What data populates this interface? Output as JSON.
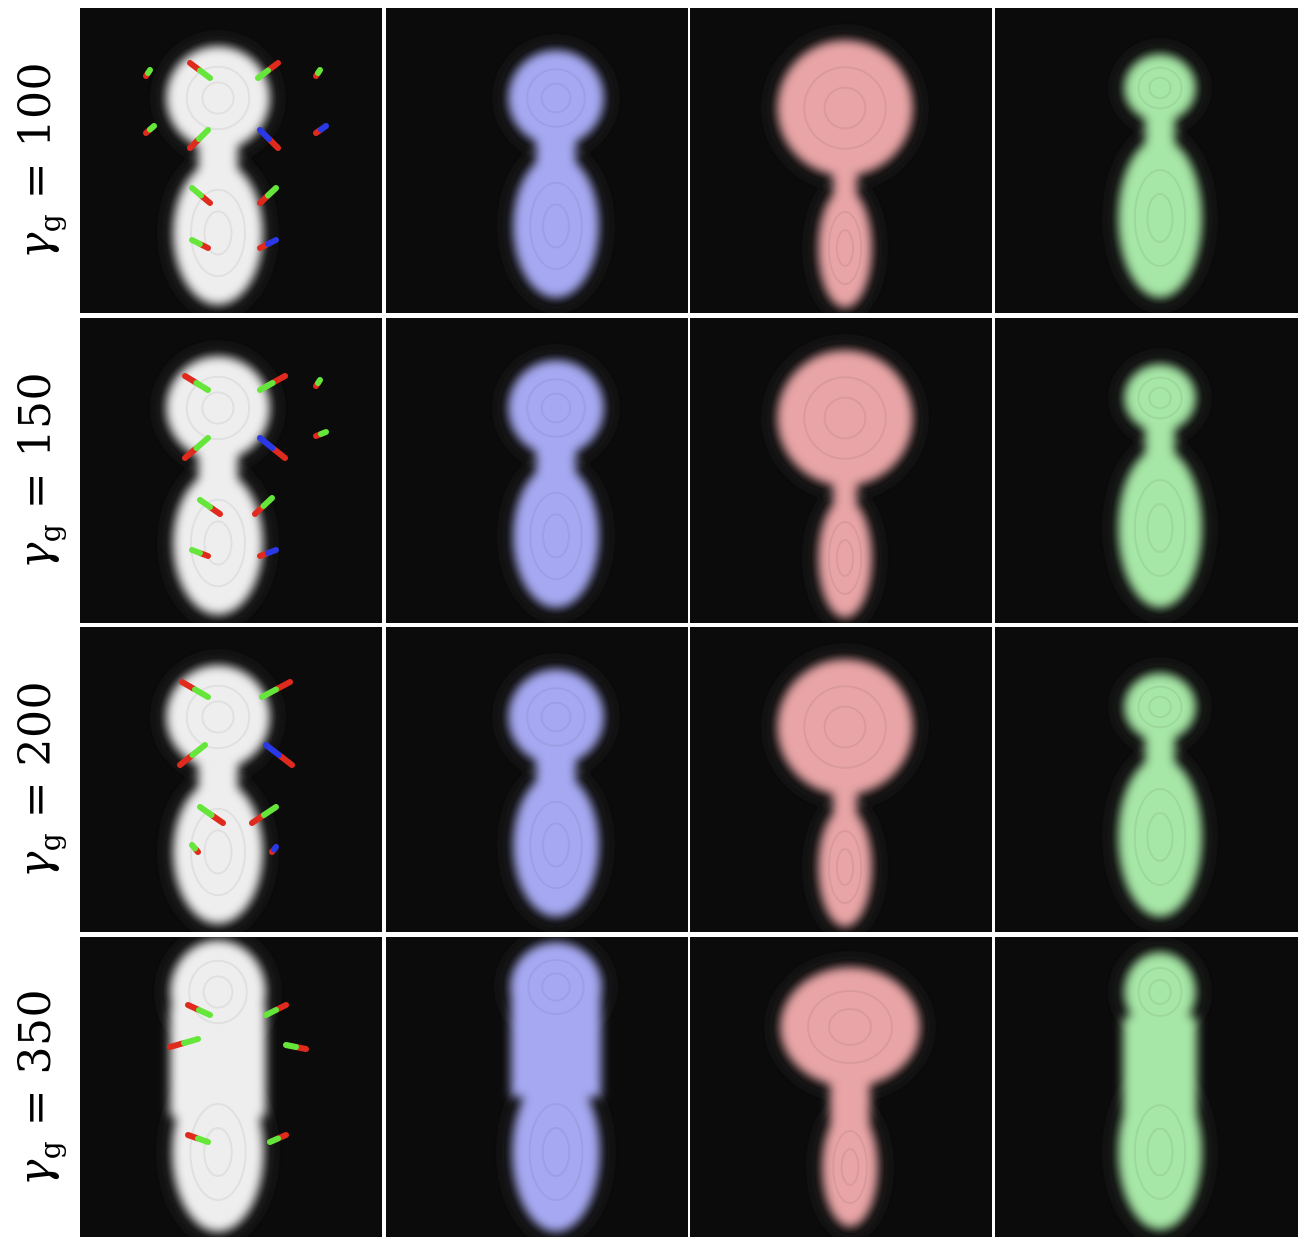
{
  "rows": [
    {
      "label": {
        "symbol": "γ",
        "subscript": "g",
        "operator": "=",
        "value": "100"
      }
    },
    {
      "label": {
        "symbol": "γ",
        "subscript": "g",
        "operator": "=",
        "value": "150"
      }
    },
    {
      "label": {
        "symbol": "γ",
        "subscript": "g",
        "operator": "=",
        "value": "200"
      }
    },
    {
      "label": {
        "symbol": "γ",
        "subscript": "g",
        "operator": "=",
        "value": "350"
      }
    }
  ],
  "columns": [
    {
      "shape": "white-figure-with-arrows",
      "fill": "#eeeeee"
    },
    {
      "shape": "blue-figure",
      "fill": "#a6a9f2"
    },
    {
      "shape": "red-figure",
      "fill": "#e8a4a6"
    },
    {
      "shape": "green-figure",
      "fill": "#a6e6a6"
    }
  ],
  "colors": {
    "background": "#0b0b0b",
    "arrow_red": "#e02a1e",
    "arrow_green": "#66e63a",
    "arrow_blue": "#2a38e6",
    "halo": "#1c1c1c"
  }
}
